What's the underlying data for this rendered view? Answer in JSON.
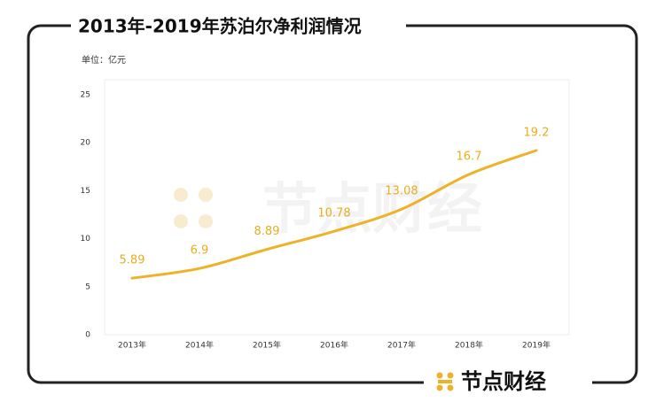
{
  "chart_data": {
    "type": "line",
    "title": "2013年-2019年苏泊尔净利润情况",
    "unit_label": "单位：亿元",
    "categories": [
      "2013年",
      "2014年",
      "2015年",
      "2016年",
      "2017年",
      "2018年",
      "2019年"
    ],
    "values": [
      5.89,
      6.9,
      8.89,
      10.78,
      13.08,
      16.7,
      19.2
    ],
    "color": "#eeb22a",
    "ylim": [
      0,
      25
    ],
    "yticks": [
      0,
      5,
      10,
      15,
      20,
      25
    ],
    "grid": false,
    "watermark": "节点财经",
    "brand": "节点财经"
  }
}
